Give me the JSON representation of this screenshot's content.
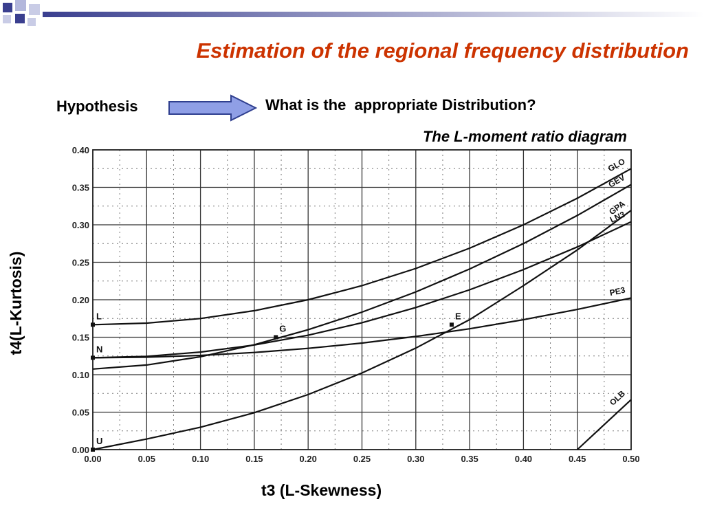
{
  "slide": {
    "title": "Estimation of the regional frequency distribution",
    "hypothesis": "Hypothesis",
    "question": "What is the  appropriate Distribution?",
    "diagram_title": "The L-moment ratio diagram",
    "y_title": "t4(L-Kurtosis)",
    "x_title": "t3 (L-Skewness)",
    "colors": {
      "title": "#cc3300",
      "arrow_fill": "#8f9fe6",
      "arrow_stroke": "#2f3f8f",
      "logo": "#3a3f8f"
    }
  },
  "chart_data": {
    "type": "line",
    "xlim": [
      0,
      0.5
    ],
    "ylim": [
      0,
      0.4
    ],
    "x_ticks": [
      "0.00",
      "0.05",
      "0.10",
      "0.15",
      "0.20",
      "0.25",
      "0.30",
      "0.35",
      "0.40",
      "0.45",
      "0.50"
    ],
    "y_ticks": [
      "0.00",
      "0.05",
      "0.10",
      "0.15",
      "0.20",
      "0.25",
      "0.30",
      "0.35",
      "0.40"
    ],
    "grid": true,
    "series": [
      {
        "name": "GLO",
        "points": [
          [
            0,
            0.1667
          ],
          [
            0.05,
            0.1688
          ],
          [
            0.1,
            0.175
          ],
          [
            0.15,
            0.1854
          ],
          [
            0.2,
            0.2
          ],
          [
            0.25,
            0.2188
          ],
          [
            0.3,
            0.2417
          ],
          [
            0.35,
            0.2688
          ],
          [
            0.4,
            0.3
          ],
          [
            0.45,
            0.3354
          ],
          [
            0.5,
            0.375
          ]
        ]
      },
      {
        "name": "GEV",
        "points": [
          [
            0,
            0.1075
          ],
          [
            0.05,
            0.1129
          ],
          [
            0.1,
            0.1239
          ],
          [
            0.15,
            0.14
          ],
          [
            0.2,
            0.16
          ],
          [
            0.25,
            0.1835
          ],
          [
            0.3,
            0.2105
          ],
          [
            0.35,
            0.241
          ],
          [
            0.4,
            0.275
          ],
          [
            0.45,
            0.3125
          ],
          [
            0.5,
            0.3537
          ]
        ]
      },
      {
        "name": "LN3",
        "points": [
          [
            0,
            0.1226
          ],
          [
            0.05,
            0.1245
          ],
          [
            0.1,
            0.1302
          ],
          [
            0.15,
            0.1396
          ],
          [
            0.2,
            0.1527
          ],
          [
            0.25,
            0.1694
          ],
          [
            0.3,
            0.1896
          ],
          [
            0.35,
            0.2133
          ],
          [
            0.4,
            0.2403
          ],
          [
            0.45,
            0.2705
          ],
          [
            0.5,
            0.304
          ]
        ]
      },
      {
        "name": "GPA",
        "points": [
          [
            0,
            0
          ],
          [
            0.05,
            0.0141
          ],
          [
            0.1,
            0.0299
          ],
          [
            0.15,
            0.0493
          ],
          [
            0.2,
            0.0735
          ],
          [
            0.25,
            0.1023
          ],
          [
            0.3,
            0.1355
          ],
          [
            0.35,
            0.1735
          ],
          [
            0.4,
            0.2188
          ],
          [
            0.45,
            0.2664
          ],
          [
            0.5,
            0.3193
          ]
        ]
      },
      {
        "name": "PE3",
        "points": [
          [
            0,
            0.1226
          ],
          [
            0.05,
            0.1234
          ],
          [
            0.1,
            0.1257
          ],
          [
            0.15,
            0.1296
          ],
          [
            0.2,
            0.1351
          ],
          [
            0.25,
            0.1422
          ],
          [
            0.3,
            0.151
          ],
          [
            0.35,
            0.1613
          ],
          [
            0.4,
            0.1734
          ],
          [
            0.45,
            0.1871
          ],
          [
            0.5,
            0.2024
          ]
        ]
      },
      {
        "name": "OLB",
        "points": [
          [
            0.45,
            0
          ],
          [
            0.5,
            0.0667
          ]
        ]
      }
    ],
    "points": [
      {
        "label": "L",
        "x": 0,
        "y": 0.1667
      },
      {
        "label": "N",
        "x": 0,
        "y": 0.1226
      },
      {
        "label": "U",
        "x": 0,
        "y": 0
      },
      {
        "label": "G",
        "x": 0.17,
        "y": 0.15
      },
      {
        "label": "E",
        "x": 0.3333,
        "y": 0.1667
      }
    ]
  }
}
